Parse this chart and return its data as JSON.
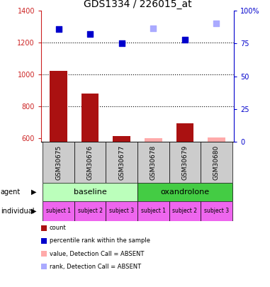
{
  "title": "GDS1334 / 226015_at",
  "samples": [
    "GSM30675",
    "GSM30676",
    "GSM30677",
    "GSM30678",
    "GSM30679",
    "GSM30680"
  ],
  "count_values": [
    1025,
    880,
    615,
    600,
    695,
    605
  ],
  "count_absent": [
    false,
    false,
    false,
    true,
    false,
    true
  ],
  "percentile_values": [
    1285,
    1255,
    1195,
    1290,
    1220,
    1320
  ],
  "percentile_absent": [
    false,
    false,
    false,
    true,
    false,
    true
  ],
  "ylim_left": [
    580,
    1400
  ],
  "ylim_right": [
    0,
    100
  ],
  "y_ticks_left": [
    600,
    800,
    1000,
    1200,
    1400
  ],
  "y_ticks_right": [
    0,
    25,
    50,
    75,
    100
  ],
  "colors": {
    "count_present": "#aa1111",
    "count_absent": "#ffaaaa",
    "percentile_present": "#0000cc",
    "percentile_absent": "#aaaaff",
    "baseline_bg": "#bbffbb",
    "oxandrolone_bg": "#44cc44",
    "subject_bg": "#ee66ee",
    "sample_label_bg": "#cccccc",
    "left_axis_color": "#cc2222",
    "right_axis_color": "#0000cc"
  },
  "individual_labels": [
    "subject 1",
    "subject 2",
    "subject 3",
    "subject 1",
    "subject 2",
    "subject 3"
  ],
  "legend_items": [
    {
      "label": "count",
      "color": "#aa1111"
    },
    {
      "label": "percentile rank within the sample",
      "color": "#0000cc"
    },
    {
      "label": "value, Detection Call = ABSENT",
      "color": "#ffaaaa"
    },
    {
      "label": "rank, Detection Call = ABSENT",
      "color": "#aaaaff"
    }
  ]
}
